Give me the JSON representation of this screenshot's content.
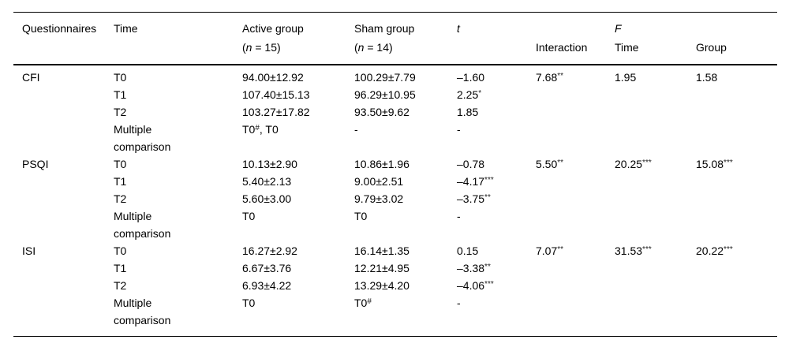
{
  "table": {
    "columns": {
      "questionnaires": {
        "line1": "Questionnaires",
        "line2": ""
      },
      "time": {
        "line1": "Time",
        "line2": ""
      },
      "active": {
        "line1": "Active group",
        "line2": "(~{n} = 15)"
      },
      "sham": {
        "line1": "Sham group",
        "line2": "(~{n} = 14)"
      },
      "t": {
        "line1": "~{t}",
        "line2": ""
      },
      "interaction": {
        "line1": "",
        "line2": "Interaction"
      },
      "f_time": {
        "line1": "~{F}",
        "line2": "Time"
      },
      "group": {
        "line1": "",
        "line2": "Group"
      }
    },
    "groups": [
      {
        "questionnaire": "CFI",
        "rows": [
          {
            "time": "T0",
            "active": "94.00±12.92",
            "sham": "100.29±7.79",
            "t": "–1.60",
            "interaction": "7.68^{**}",
            "f_time": "1.95",
            "group": "1.58"
          },
          {
            "time": "T1",
            "active": "107.40±15.13",
            "sham": "96.29±10.95",
            "t": "2.25^{*}",
            "interaction": "",
            "f_time": "",
            "group": ""
          },
          {
            "time": "T2",
            "active": "103.27±17.82",
            "sham": "93.50±9.62",
            "t": "1.85",
            "interaction": "",
            "f_time": "",
            "group": ""
          },
          {
            "time": "Multiple\ncomparison",
            "active": "T0^{#}, T0",
            "sham": "-",
            "t": "-",
            "interaction": "",
            "f_time": "",
            "group": ""
          }
        ]
      },
      {
        "questionnaire": "PSQI",
        "rows": [
          {
            "time": "T0",
            "active": "10.13±2.90",
            "sham": "10.86±1.96",
            "t": "–0.78",
            "interaction": "5.50^{**}",
            "f_time": "20.25^{***}",
            "group": "15.08^{***}"
          },
          {
            "time": "T1",
            "active": "5.40±2.13",
            "sham": "9.00±2.51",
            "t": "–4.17^{***}",
            "interaction": "",
            "f_time": "",
            "group": ""
          },
          {
            "time": "T2",
            "active": "5.60±3.00",
            "sham": "9.79±3.02",
            "t": "–3.75^{**}",
            "interaction": "",
            "f_time": "",
            "group": ""
          },
          {
            "time": "Multiple\ncomparison",
            "active": "T0",
            "sham": "T0",
            "t": "-",
            "interaction": "",
            "f_time": "",
            "group": ""
          }
        ]
      },
      {
        "questionnaire": "ISI",
        "rows": [
          {
            "time": "T0",
            "active": "16.27±2.92",
            "sham": "16.14±1.35",
            "t": "0.15",
            "interaction": "7.07^{**}",
            "f_time": "31.53^{***}",
            "group": "20.22^{***}"
          },
          {
            "time": "T1",
            "active": "6.67±3.76",
            "sham": "12.21±4.95",
            "t": "–3.38^{**}",
            "interaction": "",
            "f_time": "",
            "group": ""
          },
          {
            "time": "T2",
            "active": "6.93±4.22",
            "sham": "13.29±4.20",
            "t": "–4.06^{***}",
            "interaction": "",
            "f_time": "",
            "group": ""
          },
          {
            "time": "Multiple\ncomparison",
            "active": "T0",
            "sham": "T0^{#}",
            "t": "-",
            "interaction": "",
            "f_time": "",
            "group": ""
          }
        ]
      }
    ]
  }
}
